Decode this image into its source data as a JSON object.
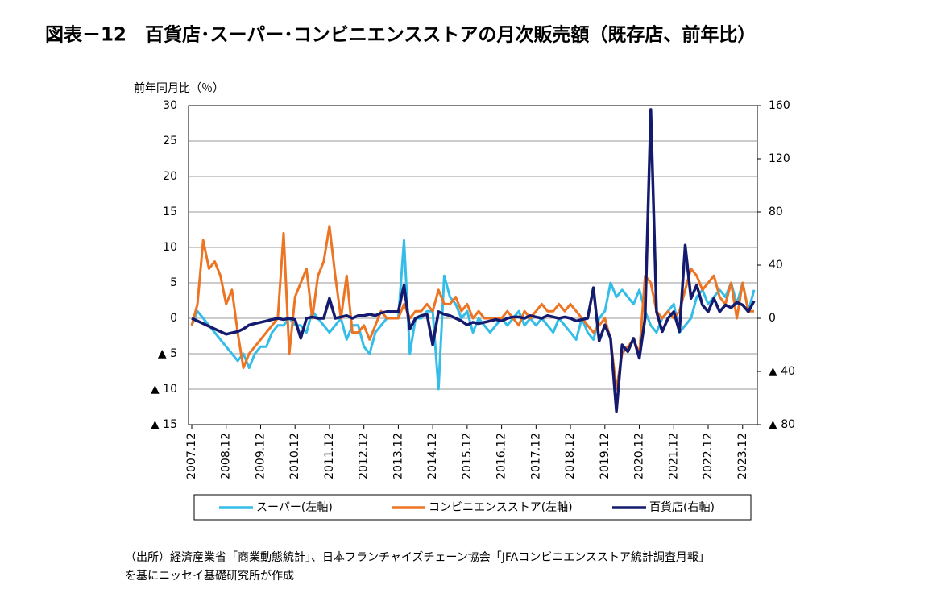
{
  "chart_data": {
    "type": "line",
    "title": "図表－12　百貨店･スーパー･コンビニエンスストアの月次販売額（既存店、前年比）",
    "y_label": "前年同月比（％）",
    "source": [
      "（出所）経済産業省「商業動態統計」、日本フランチャイズチェーン協会「JFAコンビニエンスストア統計調査月報」",
      "を基にニッセイ基礎研究所が作成"
    ],
    "categories": [
      "2007.12",
      null,
      null,
      null,
      null,
      null,
      "2008.12",
      null,
      null,
      null,
      null,
      null,
      "2009.12",
      null,
      null,
      null,
      null,
      null,
      "2010.12",
      null,
      null,
      null,
      null,
      null,
      "2011.12",
      null,
      null,
      null,
      null,
      null,
      "2012.12",
      null,
      null,
      null,
      null,
      null,
      "2013.12",
      null,
      null,
      null,
      null,
      null,
      "2014.12",
      null,
      null,
      null,
      null,
      null,
      "2015.12",
      null,
      null,
      null,
      null,
      null,
      "2016.12",
      null,
      null,
      null,
      null,
      null,
      "2017.12",
      null,
      null,
      null,
      null,
      null,
      "2018.12",
      null,
      null,
      null,
      null,
      null,
      "2019.12",
      null,
      null,
      null,
      null,
      null,
      "2020.12",
      null,
      null,
      null,
      null,
      null,
      "2021.12",
      null,
      null,
      null,
      null,
      null,
      "2022.12",
      null,
      null,
      null,
      null,
      null,
      "2023.12",
      null,
      null
    ],
    "series": [
      {
        "name": "スーパー(左軸)",
        "color": "#33bde8",
        "axis": "y",
        "values": [
          -1,
          1,
          0,
          -1,
          -2,
          -3,
          -4,
          -5,
          -6,
          -5,
          -7,
          -5,
          -4,
          -4,
          -2,
          -1,
          -1,
          0,
          -1,
          -1,
          -2,
          1,
          0,
          -1,
          -2,
          -1,
          0,
          -3,
          -1,
          -1,
          -4,
          -5,
          -2,
          -1,
          0,
          0,
          0,
          11,
          -5,
          0,
          0,
          1,
          1,
          -10,
          6,
          3,
          2,
          0,
          1,
          -2,
          0,
          -1,
          -2,
          -1,
          0,
          -1,
          0,
          1,
          -1,
          0,
          -1,
          0,
          -1,
          -2,
          0,
          -1,
          -2,
          -3,
          0,
          -2,
          -3,
          0,
          1,
          5,
          3,
          4,
          3,
          2,
          4,
          1,
          -1,
          -2,
          0,
          1,
          2,
          -2,
          -1,
          0,
          3,
          4,
          2,
          3,
          4,
          3,
          5,
          2,
          5,
          1,
          4
        ]
      },
      {
        "name": "コンビニエンスストア(左軸)",
        "color": "#ed7422",
        "axis": "y",
        "values": [
          -1,
          2,
          11,
          7,
          8,
          6,
          2,
          4,
          -2,
          -7,
          -5,
          -4,
          -3,
          -2,
          -1,
          0,
          12,
          -5,
          3,
          5,
          7,
          0,
          6,
          8,
          13,
          6,
          0,
          6,
          -2,
          -2,
          -1,
          -3,
          -1,
          1,
          0,
          0,
          0,
          2,
          0,
          1,
          1,
          2,
          1,
          4,
          2,
          2,
          3,
          1,
          2,
          0,
          1,
          0,
          0,
          0,
          0,
          1,
          0,
          -1,
          1,
          0,
          1,
          2,
          1,
          1,
          2,
          1,
          2,
          1,
          0,
          -1,
          -2,
          -1,
          0,
          -3,
          -10,
          -5,
          -4,
          -3,
          -5,
          6,
          5,
          1,
          0,
          1,
          0,
          1,
          4,
          7,
          6,
          4,
          5,
          6,
          3,
          2,
          5,
          0,
          5,
          1,
          1
        ]
      },
      {
        "name": "百貨店(右軸)",
        "color": "#141a6e",
        "axis": "y2",
        "values": [
          0,
          -2,
          -4,
          -6,
          -8,
          -10,
          -12,
          -11,
          -10,
          -8,
          -5,
          -4,
          -3,
          -2,
          -1,
          0,
          -1,
          0,
          -1,
          -15,
          0,
          1,
          0,
          0,
          15,
          0,
          1,
          2,
          0,
          2,
          2,
          3,
          2,
          4,
          5,
          5,
          5,
          25,
          -8,
          0,
          2,
          3,
          -20,
          5,
          3,
          2,
          0,
          -2,
          -5,
          -3,
          -4,
          -3,
          -2,
          -1,
          -2,
          0,
          1,
          1,
          0,
          2,
          1,
          0,
          2,
          1,
          0,
          1,
          0,
          -2,
          -1,
          0,
          23,
          -17,
          -5,
          -15,
          -70,
          -20,
          -25,
          -15,
          -30,
          0,
          157,
          5,
          -10,
          0,
          5,
          -10,
          55,
          15,
          25,
          10,
          5,
          15,
          5,
          10,
          8,
          12,
          10,
          5,
          13
        ]
      }
    ],
    "ylim": [
      -15,
      30
    ],
    "yticks": [
      30,
      25,
      20,
      15,
      10,
      5,
      0,
      {
        "value": -5,
        "label": "▲ 5"
      },
      {
        "value": -10,
        "label": "▲ 10"
      },
      {
        "value": -15,
        "label": "▲ 15"
      }
    ],
    "y2lim": [
      -80,
      160
    ],
    "y2ticks": [
      160,
      120,
      80,
      40,
      0,
      {
        "value": -40,
        "label": "▲ 40"
      },
      {
        "value": -80,
        "label": "▲ 80"
      }
    ],
    "grid": true
  }
}
